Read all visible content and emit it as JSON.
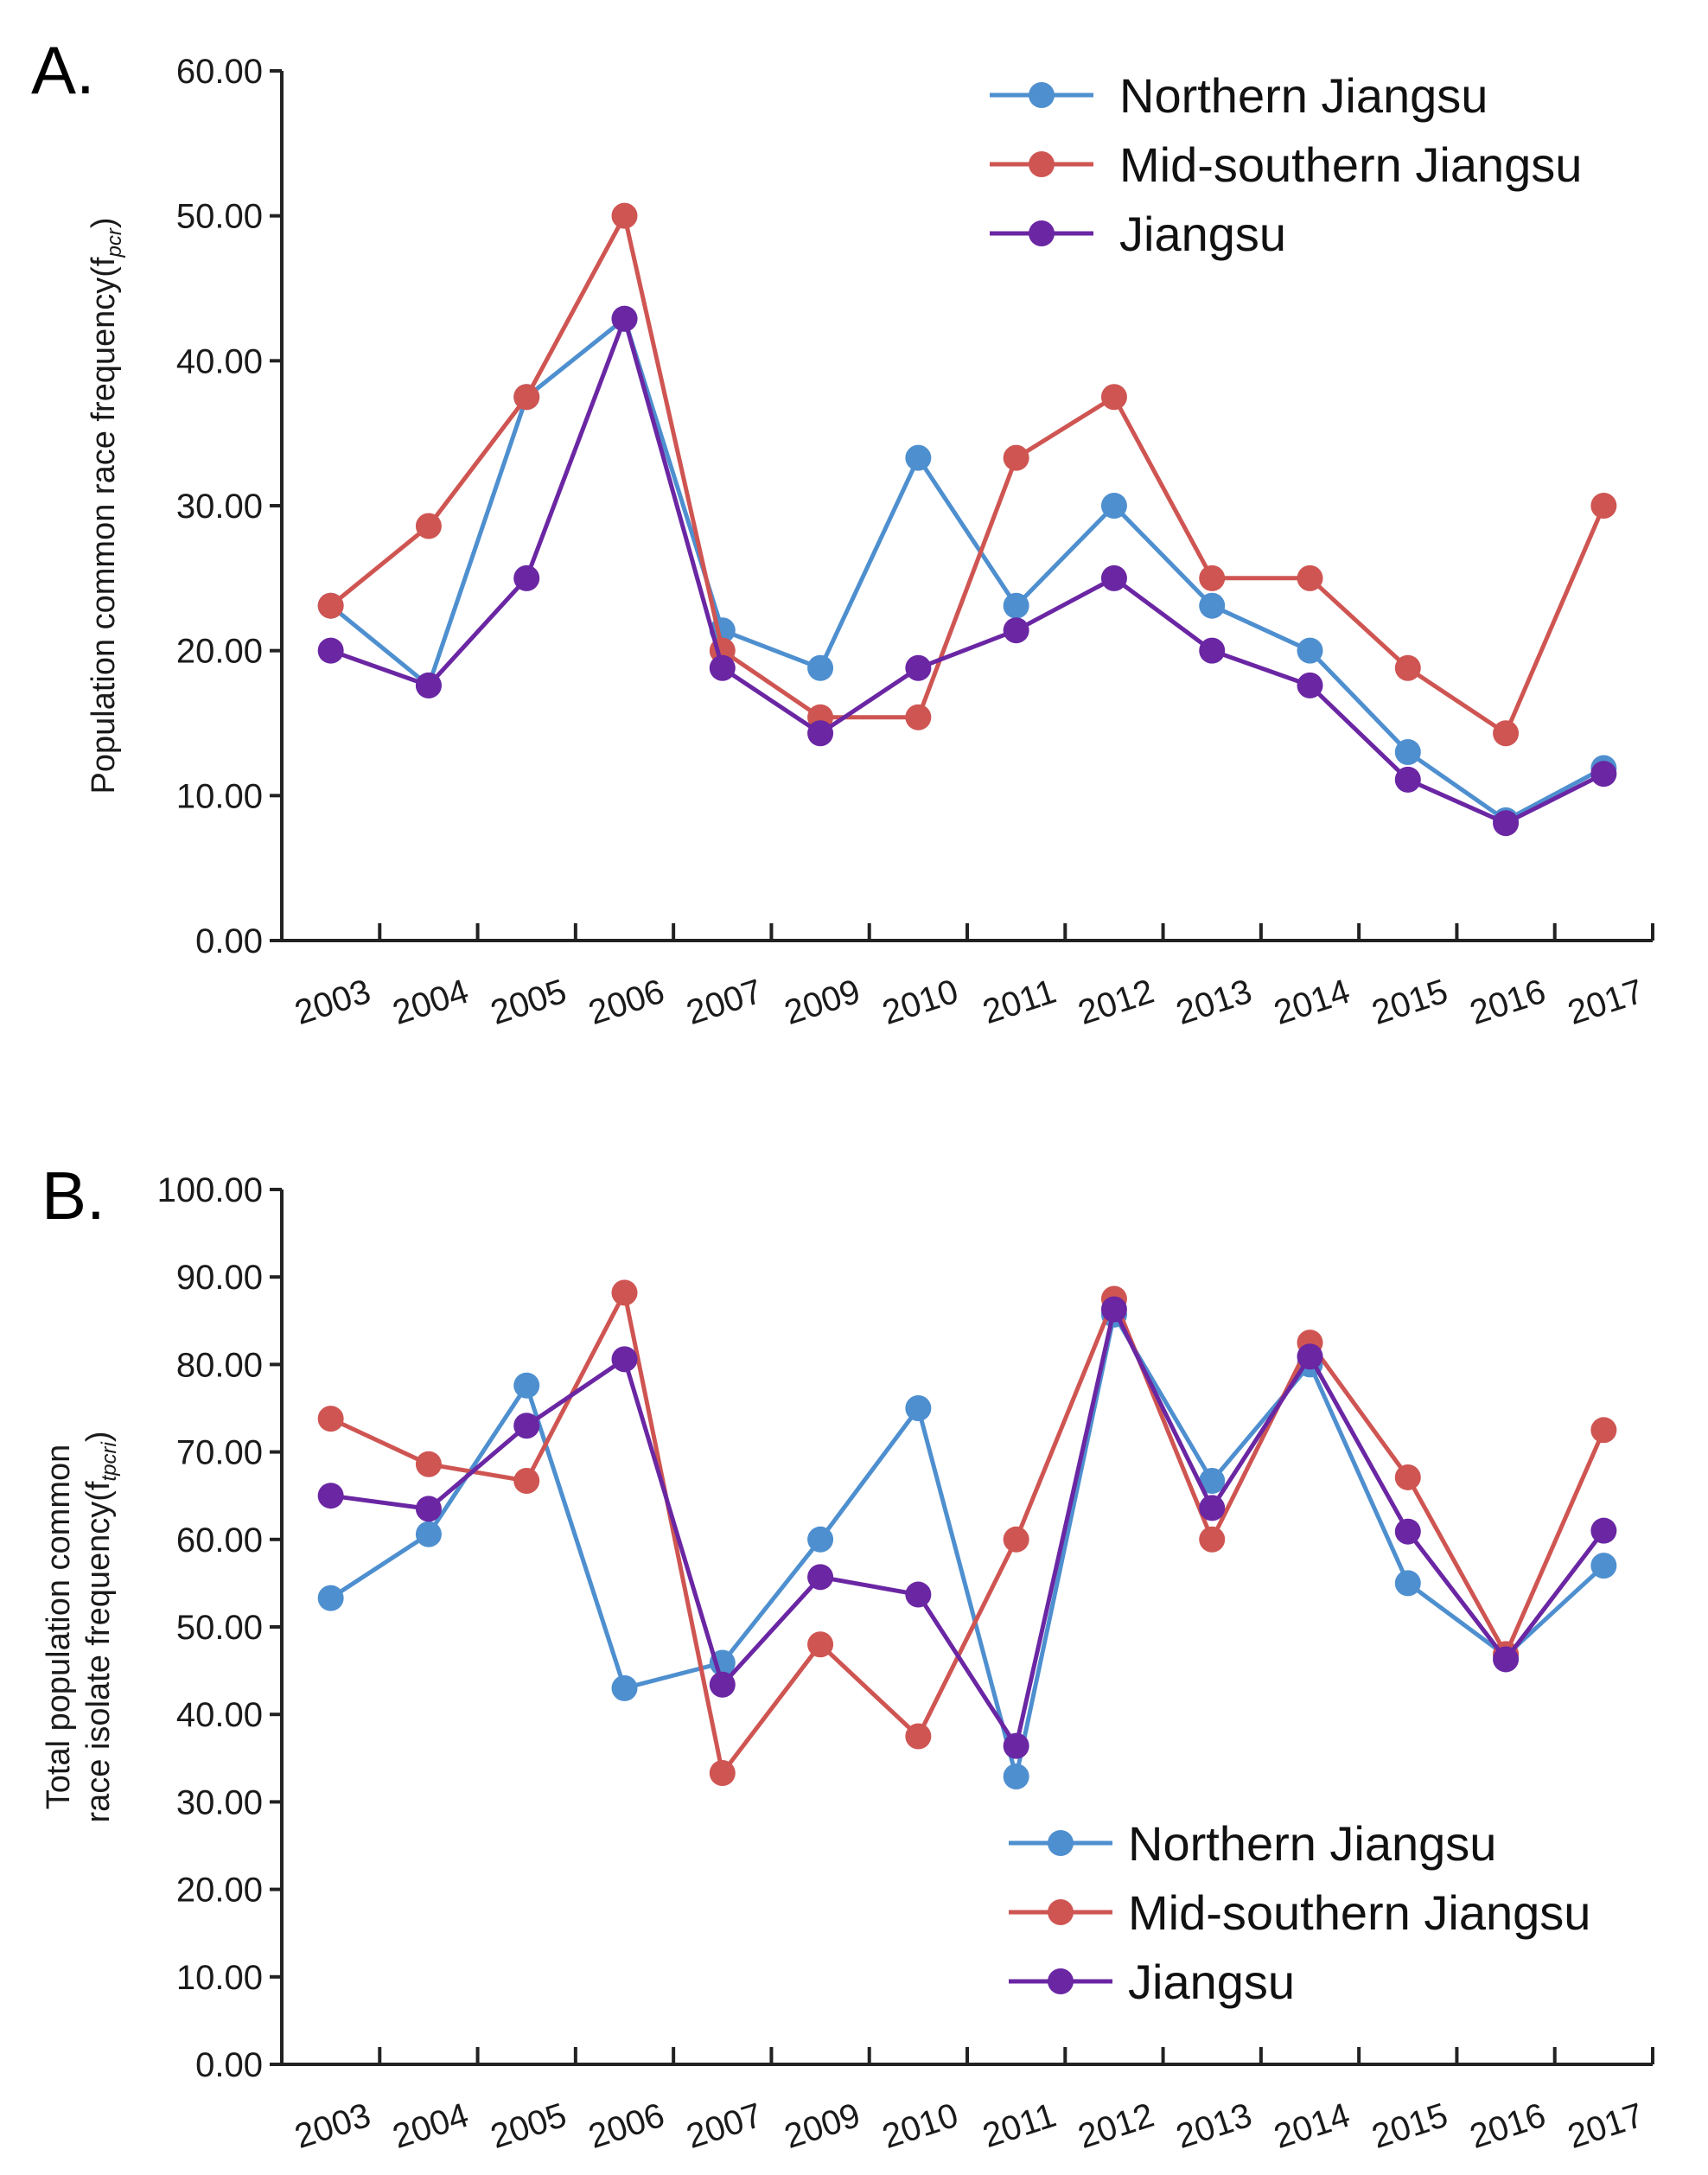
{
  "colors": {
    "northern": "#4e8fcf",
    "midsouthern": "#cf5552",
    "jiangsu": "#6a26a3"
  },
  "chart_data": [
    {
      "panel": "A.",
      "type": "line",
      "ylabel": "Population common race frequency(f",
      "ylabel_sub": "pcr",
      "ylabel_tail": ")",
      "categories": [
        "2003",
        "2004",
        "2005",
        "2006",
        "2007",
        "2009",
        "2010",
        "2011",
        "2012",
        "2013",
        "2014",
        "2015",
        "2016",
        "2017"
      ],
      "ylim": [
        0,
        60
      ],
      "yticks": [
        "0.00",
        "10.00",
        "20.00",
        "30.00",
        "40.00",
        "50.00",
        "60.00"
      ],
      "legend_position": "top-right",
      "series": [
        {
          "name": "Northern Jiangsu",
          "color_key": "northern",
          "values": [
            23.1,
            17.6,
            37.5,
            42.9,
            21.4,
            18.8,
            33.3,
            23.1,
            30.0,
            23.1,
            20.0,
            13.0,
            8.3,
            11.9
          ]
        },
        {
          "name": "Mid-southern Jiangsu",
          "color_key": "midsouthern",
          "values": [
            23.1,
            28.6,
            37.5,
            50.0,
            20.0,
            15.4,
            15.4,
            33.3,
            37.5,
            25.0,
            25.0,
            18.8,
            14.3,
            30.0
          ]
        },
        {
          "name": "Jiangsu",
          "color_key": "jiangsu",
          "values": [
            20.0,
            17.6,
            25.0,
            42.9,
            18.8,
            14.3,
            18.8,
            21.4,
            25.0,
            20.0,
            17.6,
            11.1,
            8.1,
            11.5
          ]
        }
      ]
    },
    {
      "panel": "B.",
      "type": "line",
      "ylabel": "Total population common",
      "ylabel_line2": "race isolate frequency(f",
      "ylabel_sub": "tpcri",
      "ylabel_tail": ")",
      "categories": [
        "2003",
        "2004",
        "2005",
        "2006",
        "2007",
        "2009",
        "2010",
        "2011",
        "2012",
        "2013",
        "2014",
        "2015",
        "2016",
        "2017"
      ],
      "ylim": [
        0,
        100
      ],
      "yticks": [
        "0.00",
        "10.00",
        "20.00",
        "30.00",
        "40.00",
        "50.00",
        "60.00",
        "70.00",
        "80.00",
        "90.00",
        "100.00"
      ],
      "legend_position": "bottom-right",
      "series": [
        {
          "name": "Northern Jiangsu",
          "color_key": "northern",
          "values": [
            53.3,
            60.6,
            77.6,
            43.0,
            45.9,
            60.0,
            75.0,
            32.9,
            85.7,
            66.7,
            80.0,
            55.0,
            46.7,
            57.0
          ]
        },
        {
          "name": "Mid-southern Jiangsu",
          "color_key": "midsouthern",
          "values": [
            73.8,
            68.6,
            66.7,
            88.2,
            33.3,
            48.0,
            37.5,
            60.0,
            87.5,
            60.0,
            82.5,
            67.1,
            46.9,
            72.5
          ]
        },
        {
          "name": "Jiangsu",
          "color_key": "jiangsu",
          "values": [
            65.0,
            63.5,
            73.0,
            80.6,
            43.4,
            55.7,
            53.7,
            36.4,
            86.3,
            63.6,
            80.9,
            60.9,
            46.3,
            61.0
          ]
        }
      ]
    }
  ]
}
